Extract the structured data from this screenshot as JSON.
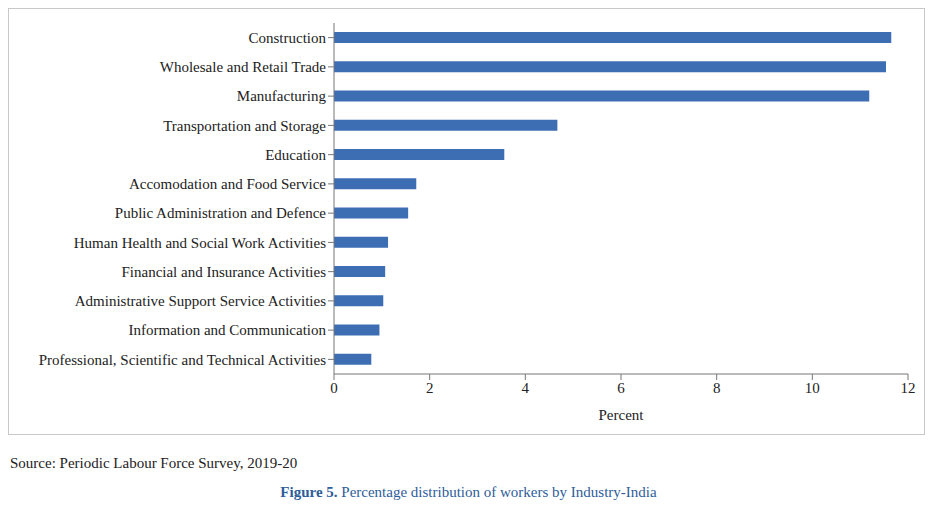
{
  "chart_data": {
    "type": "bar",
    "orientation": "horizontal",
    "categories": [
      "Construction",
      "Wholesale and Retail Trade",
      "Manufacturing",
      "Transportation and Storage",
      "Education",
      "Accomodation and Food Service",
      "Public Administration and Defence",
      "Human Health and Social Work Activities",
      "Financial and Insurance Activities",
      "Administrative Support Service Activities",
      "Information and Communication",
      "Professional, Scientific and Technical Activities"
    ],
    "values": [
      11.65,
      11.54,
      11.19,
      4.67,
      3.56,
      1.72,
      1.55,
      1.13,
      1.07,
      1.03,
      0.95,
      0.78
    ],
    "color": "#3d6eb4",
    "xlabel": "Percent",
    "xlim": [
      0,
      12
    ],
    "xticks": [
      0,
      2,
      4,
      6,
      8,
      10,
      12
    ],
    "grid": false,
    "data_labels": false,
    "source": "Source: Periodic Labour Force Survey, 2019-20",
    "caption_label": "Figure 5.",
    "caption": "Percentage distribution of workers by Industry-India"
  }
}
